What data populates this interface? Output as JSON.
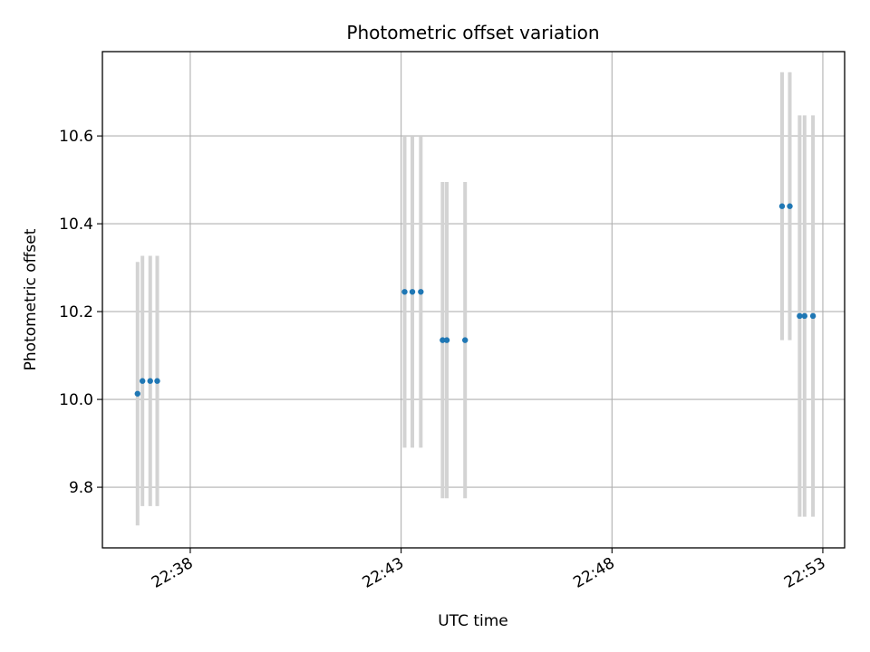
{
  "chart_data": {
    "type": "scatter",
    "title": "Photometric offset variation",
    "xlabel": "UTC time",
    "ylabel": "Photometric offset",
    "x_axis_kind": "time",
    "xlim": [
      "22:35:55",
      "22:53:31"
    ],
    "ylim": [
      9.662,
      10.792
    ],
    "x_ticks": [
      "22:38",
      "22:43",
      "22:48",
      "22:53"
    ],
    "y_ticks": [
      9.8,
      10.0,
      10.2,
      10.4,
      10.6
    ],
    "grid": true,
    "colors": {
      "point": "#1f77b4",
      "errorbar": "#d3d3d3",
      "grid": "#b0b0b0"
    },
    "points": [
      {
        "t": "22:36:45",
        "y": 10.013,
        "err": 0.3
      },
      {
        "t": "22:36:52",
        "y": 10.042,
        "err": 0.285
      },
      {
        "t": "22:37:03",
        "y": 10.042,
        "err": 0.285
      },
      {
        "t": "22:37:13",
        "y": 10.042,
        "err": 0.285
      },
      {
        "t": "22:43:05",
        "y": 10.245,
        "err": 0.355
      },
      {
        "t": "22:43:16",
        "y": 10.245,
        "err": 0.355
      },
      {
        "t": "22:43:28",
        "y": 10.245,
        "err": 0.355
      },
      {
        "t": "22:43:59",
        "y": 10.135,
        "err": 0.36
      },
      {
        "t": "22:44:05",
        "y": 10.135,
        "err": 0.36
      },
      {
        "t": "22:44:31",
        "y": 10.135,
        "err": 0.36
      },
      {
        "t": "22:52:02",
        "y": 10.44,
        "err": 0.305
      },
      {
        "t": "22:52:13",
        "y": 10.44,
        "err": 0.305
      },
      {
        "t": "22:52:27",
        "y": 10.19,
        "err": 0.457
      },
      {
        "t": "22:52:34",
        "y": 10.19,
        "err": 0.457
      },
      {
        "t": "22:52:46",
        "y": 10.19,
        "err": 0.457
      }
    ]
  }
}
